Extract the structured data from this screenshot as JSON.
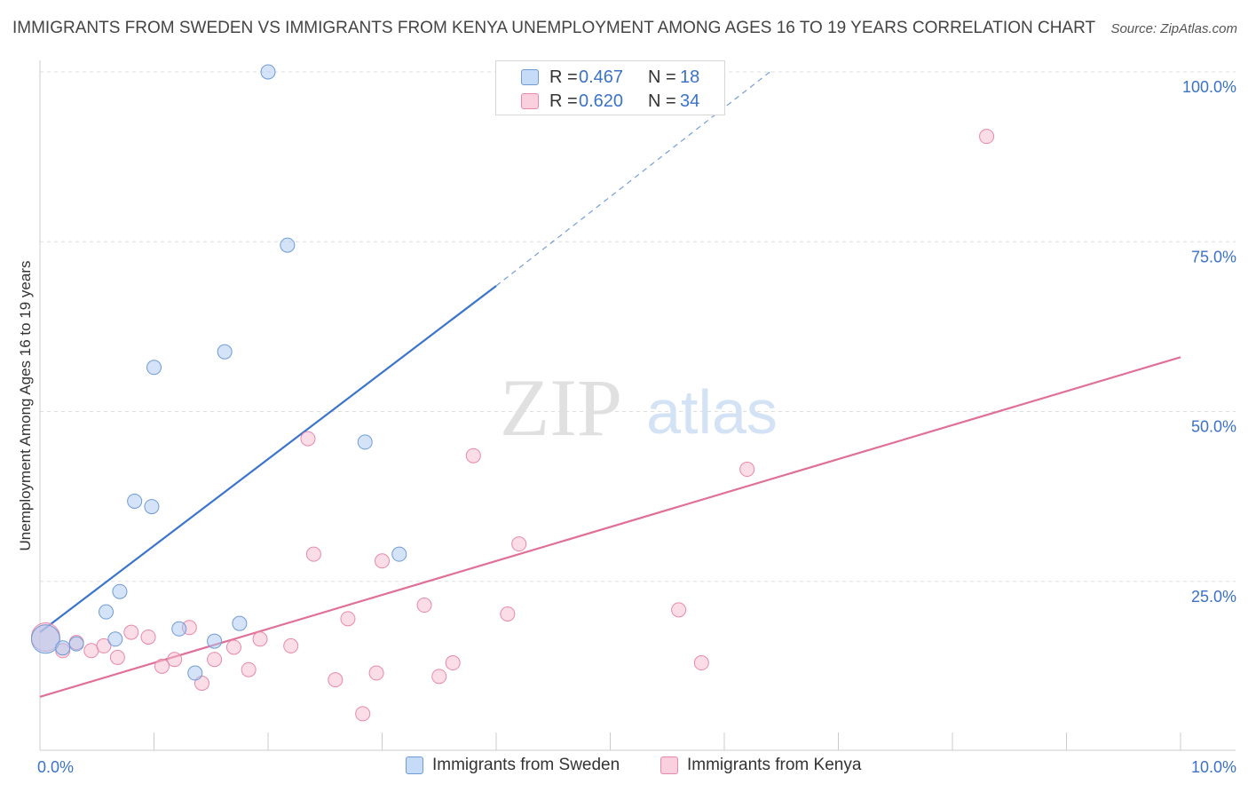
{
  "title": "IMMIGRANTS FROM SWEDEN VS IMMIGRANTS FROM KENYA UNEMPLOYMENT AMONG AGES 16 TO 19 YEARS CORRELATION CHART",
  "source": "Source: ZipAtlas.com",
  "watermark": {
    "zip": "ZIP",
    "atlas": "atlas"
  },
  "stats": [
    {
      "r_label": "R =",
      "r_value": "0.467",
      "n_label": "N =",
      "n_value": "18",
      "color": "#a9c8f0"
    },
    {
      "r_label": "R =",
      "r_value": "0.620",
      "n_label": "N =",
      "n_value": "34",
      "color": "#f7bcd0"
    }
  ],
  "chart_data": {
    "type": "scatter",
    "title": "IMMIGRANTS FROM SWEDEN VS IMMIGRANTS FROM KENYA UNEMPLOYMENT AMONG AGES 16 TO 19 YEARS CORRELATION CHART",
    "xlabel": "",
    "ylabel": "Unemployment Among Ages 16 to 19 years",
    "xlim": [
      0,
      10
    ],
    "ylim": [
      0,
      100
    ],
    "x_tick_labels": [
      {
        "value": 0,
        "label": "0.0%"
      },
      {
        "value": 10,
        "label": "10.0%"
      }
    ],
    "y_tick_labels": [
      {
        "value": 25,
        "label": "25.0%"
      },
      {
        "value": 50,
        "label": "50.0%"
      },
      {
        "value": 75,
        "label": "75.0%"
      },
      {
        "value": 100,
        "label": "100.0%"
      }
    ],
    "grid": true,
    "legend_position": "bottom",
    "series": [
      {
        "name": "Immigrants from Sweden",
        "color": "#a9c8f0",
        "edge_color": "#6f9bd8",
        "line_color": "#3b74cc",
        "points": [
          [
            0.05,
            16.5
          ],
          [
            0.2,
            15.2
          ],
          [
            0.32,
            15.8
          ],
          [
            0.66,
            16.5
          ],
          [
            0.58,
            20.5
          ],
          [
            0.7,
            23.5
          ],
          [
            0.83,
            36.8
          ],
          [
            0.98,
            36.0
          ],
          [
            1.0,
            56.5
          ],
          [
            1.22,
            18.0
          ],
          [
            1.36,
            11.5
          ],
          [
            1.53,
            16.2
          ],
          [
            1.62,
            58.8
          ],
          [
            1.75,
            18.8
          ],
          [
            2.0,
            100.0
          ],
          [
            2.17,
            74.5
          ],
          [
            2.85,
            45.5
          ],
          [
            3.15,
            29.0
          ]
        ],
        "trend": {
          "x": [
            0.0,
            4.0
          ],
          "y": [
            17.5,
            68.5
          ],
          "dashed_to": [
            6.4,
            100.0
          ]
        }
      },
      {
        "name": "Immigrants from Kenya",
        "color": "#f7bcd0",
        "edge_color": "#e889a8",
        "line_color": "#e07099",
        "points": [
          [
            0.05,
            16.8
          ],
          [
            0.2,
            14.8
          ],
          [
            0.32,
            16.0
          ],
          [
            0.45,
            14.8
          ],
          [
            0.56,
            15.5
          ],
          [
            0.68,
            13.8
          ],
          [
            0.8,
            17.5
          ],
          [
            0.95,
            16.8
          ],
          [
            1.07,
            12.5
          ],
          [
            1.18,
            13.5
          ],
          [
            1.31,
            18.2
          ],
          [
            1.42,
            10.0
          ],
          [
            1.53,
            13.5
          ],
          [
            1.7,
            15.3
          ],
          [
            1.83,
            12.0
          ],
          [
            1.93,
            16.5
          ],
          [
            2.2,
            15.5
          ],
          [
            2.35,
            46.0
          ],
          [
            2.4,
            29.0
          ],
          [
            2.59,
            10.5
          ],
          [
            2.7,
            19.5
          ],
          [
            2.83,
            5.5
          ],
          [
            2.95,
            11.5
          ],
          [
            3.0,
            28.0
          ],
          [
            3.37,
            21.5
          ],
          [
            3.5,
            11.0
          ],
          [
            3.62,
            13.0
          ],
          [
            3.8,
            43.5
          ],
          [
            4.1,
            20.2
          ],
          [
            4.2,
            30.5
          ],
          [
            5.6,
            20.8
          ],
          [
            5.8,
            13.0
          ],
          [
            6.2,
            41.5
          ],
          [
            8.3,
            90.5
          ]
        ],
        "trend": {
          "x": [
            0.0,
            10.0
          ],
          "y": [
            8.0,
            58.0
          ]
        }
      }
    ]
  }
}
